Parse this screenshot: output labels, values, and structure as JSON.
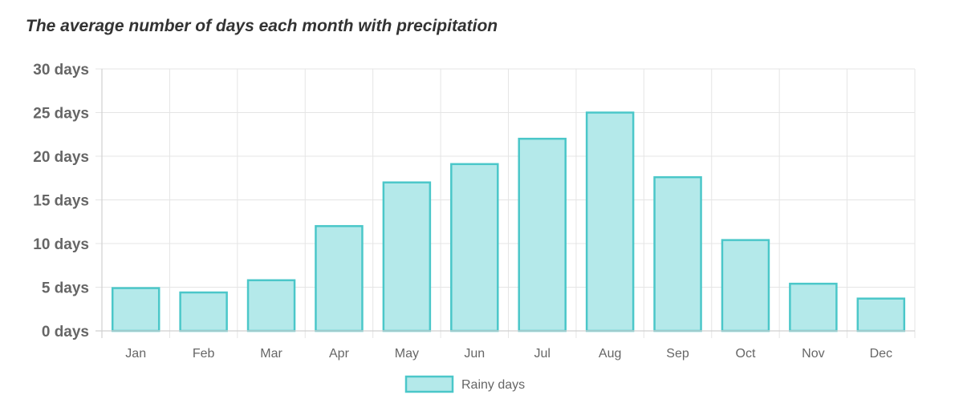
{
  "chart_data": {
    "type": "bar",
    "title": "The average number of days each month with precipitation",
    "categories": [
      "Jan",
      "Feb",
      "Mar",
      "Apr",
      "May",
      "Jun",
      "Jul",
      "Aug",
      "Sep",
      "Oct",
      "Nov",
      "Dec"
    ],
    "series": [
      {
        "name": "Rainy days",
        "values": [
          4.9,
          4.4,
          5.8,
          12.0,
          17.0,
          19.1,
          22.0,
          25.0,
          17.6,
          10.4,
          5.4,
          3.7
        ],
        "fill_color": "#b4e9ea",
        "border_color": "#4bc7c9"
      }
    ],
    "y_tick_values": [
      0,
      5,
      10,
      15,
      20,
      25,
      30
    ],
    "y_tick_labels": [
      "0 days",
      "5 days",
      "10 days",
      "15 days",
      "20 days",
      "25 days",
      "30 days"
    ],
    "ylim": [
      0,
      30
    ],
    "xlabel": "",
    "ylabel": "",
    "grid": true,
    "legend_position": "bottom"
  }
}
